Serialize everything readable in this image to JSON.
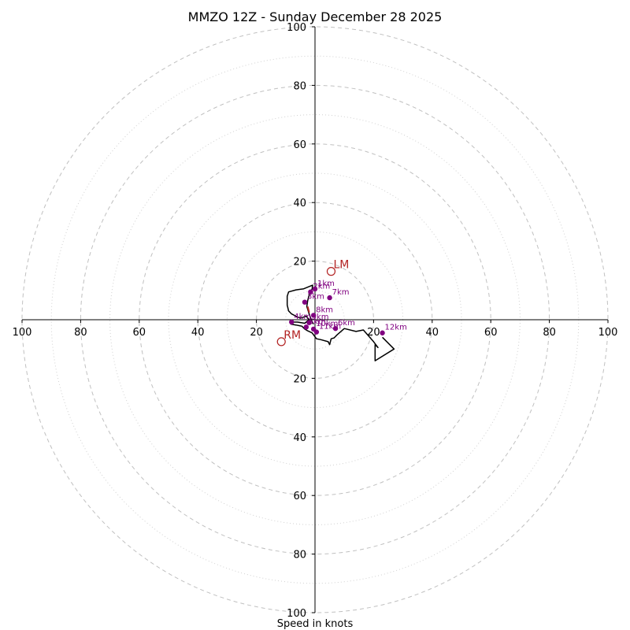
{
  "chart_data": {
    "type": "hodograph",
    "title": "MMZO 12Z - Sunday December 28 2025",
    "xlabel": "Speed in knots",
    "units": "knots",
    "range": [
      -100,
      100
    ],
    "major_rings": [
      20,
      40,
      60,
      80,
      100
    ],
    "minor_rings": [
      10,
      30,
      50,
      70,
      90
    ],
    "tick_labels": {
      "x_left": [
        "100",
        "80",
        "60",
        "40",
        "20"
      ],
      "x_right": [
        "20",
        "40",
        "60",
        "80",
        "100"
      ],
      "y_top": [
        "100",
        "80",
        "60",
        "40",
        "20"
      ],
      "y_bottom": [
        "20",
        "40",
        "60",
        "80",
        "100"
      ]
    },
    "colors": {
      "grid": "#c0c0c0",
      "hodo_line": "#000000",
      "height_marker": "#800080",
      "motion": "#b22222"
    },
    "hodograph_trace": [
      [
        -0.5,
        -1.5
      ],
      [
        -1.2,
        -0.2
      ],
      [
        -2,
        2
      ],
      [
        -2.8,
        4.5
      ],
      [
        -2.5,
        6.5
      ],
      [
        -2,
        8.5
      ],
      [
        -1,
        10.5
      ],
      [
        -0.8,
        11.8
      ],
      [
        -4,
        10.5
      ],
      [
        -6.5,
        10.2
      ],
      [
        -9,
        9.5
      ],
      [
        -9.5,
        8
      ],
      [
        -9.5,
        5
      ],
      [
        -9,
        3
      ],
      [
        -8,
        2
      ],
      [
        -6.5,
        1.2
      ],
      [
        -5,
        0.5
      ],
      [
        -3,
        1.2
      ],
      [
        -2,
        0
      ],
      [
        -3.5,
        -1.2
      ],
      [
        -6,
        -0.8
      ],
      [
        -7.8,
        -0.8
      ],
      [
        -8.2,
        -1.5
      ],
      [
        -6.5,
        -1.8
      ],
      [
        -4.5,
        -2.2
      ],
      [
        -3.5,
        -3.2
      ],
      [
        -2.5,
        -3.8
      ],
      [
        -1,
        -4.5
      ],
      [
        0.5,
        -6.5
      ],
      [
        2,
        -6.8
      ],
      [
        4.5,
        -7.5
      ],
      [
        5,
        -8.5
      ],
      [
        5.5,
        -6.5
      ],
      [
        6.5,
        -6.2
      ],
      [
        7.5,
        -5.2
      ],
      [
        10,
        -3
      ],
      [
        14,
        -4
      ],
      [
        16.5,
        -3.5
      ],
      [
        20,
        -7.5
      ],
      [
        21.5,
        -9.5
      ],
      [
        20.5,
        -8.5
      ],
      [
        20.5,
        -14
      ],
      [
        27,
        -10
      ],
      [
        23,
        -6
      ]
    ],
    "height_markers": [
      {
        "label": "1km",
        "u": 0,
        "v": 10.5
      },
      {
        "label": "2km",
        "u": -1.5,
        "v": 9.5
      },
      {
        "label": "3km",
        "u": -3.5,
        "v": 6
      },
      {
        "label": "4km",
        "u": -8,
        "v": -0.8
      },
      {
        "label": "5km",
        "u": -3,
        "v": -2.5
      },
      {
        "label": "6km",
        "u": 7,
        "v": -3
      },
      {
        "label": "7km",
        "u": 5,
        "v": 7.5
      },
      {
        "label": "8km",
        "u": -0.5,
        "v": 1.5
      },
      {
        "label": "9km",
        "u": -2,
        "v": -1
      },
      {
        "label": "10km",
        "u": -0.5,
        "v": -3.2
      },
      {
        "label": "11km",
        "u": 0.5,
        "v": -4.2
      },
      {
        "label": "12km",
        "u": 23,
        "v": -4.5
      }
    ],
    "mean_wind_vector": {
      "from": [
        -2.5,
        4.5
      ],
      "to": [
        -2,
        2.5
      ]
    },
    "storm_motions": [
      {
        "label": "LM",
        "u": 5.5,
        "v": 16.5
      },
      {
        "label": "RM",
        "u": -11.5,
        "v": -7.5
      }
    ]
  }
}
